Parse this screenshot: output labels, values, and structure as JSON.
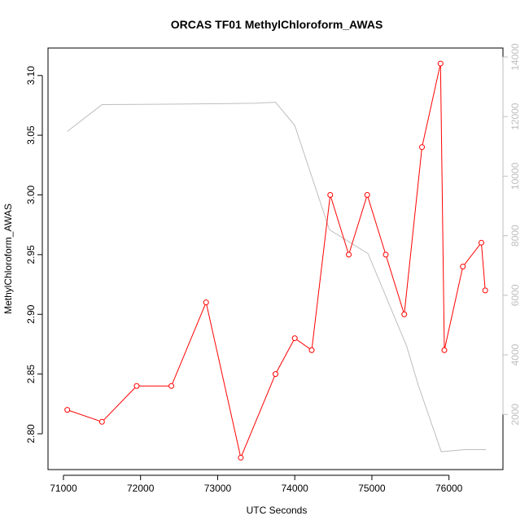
{
  "chart_data": {
    "type": "line",
    "title": "ORCAS TF01 MethylChloroform_AWAS",
    "xlabel": "UTC Seconds",
    "ylabel": "MethylChloroform_AWAS",
    "y2label": "",
    "xlim": [
      70800,
      76700
    ],
    "ylim": [
      2.77,
      3.123
    ],
    "y2lim": [
      150,
      14300
    ],
    "xticks": [
      71000,
      72000,
      73000,
      74000,
      75000,
      76000
    ],
    "yticks": [
      2.8,
      2.85,
      2.9,
      2.95,
      3.0,
      3.05,
      3.1
    ],
    "ytick_labels": [
      "2.80",
      "2.85",
      "2.90",
      "2.95",
      "3.00",
      "3.05",
      "3.10"
    ],
    "y2ticks": [
      2000,
      4000,
      6000,
      8000,
      10000,
      12000,
      14000
    ],
    "grid": false,
    "colors": {
      "primary": "#ff0000",
      "secondary": "#bebebe",
      "axis": "#000000"
    },
    "series": [
      {
        "axis": "left",
        "marker": "circle",
        "points": [
          [
            71050,
            2.82
          ],
          [
            71500,
            2.81
          ],
          [
            71950,
            2.84
          ],
          [
            72400,
            2.84
          ],
          [
            72850,
            2.91
          ],
          [
            73300,
            2.78
          ],
          [
            73750,
            2.85
          ],
          [
            74000,
            2.88
          ],
          [
            74220,
            2.87
          ],
          [
            74460,
            3.0
          ],
          [
            74700,
            2.95
          ],
          [
            74940,
            3.0
          ],
          [
            75180,
            2.95
          ],
          [
            75420,
            2.9
          ],
          [
            75650,
            3.04
          ],
          [
            75890,
            3.11
          ],
          [
            75940,
            2.87
          ],
          [
            76180,
            2.94
          ],
          [
            76420,
            2.96
          ],
          [
            76470,
            2.92
          ]
        ]
      },
      {
        "axis": "right",
        "marker": "none",
        "points": [
          [
            71050,
            11500
          ],
          [
            71500,
            12400
          ],
          [
            72000,
            12410
          ],
          [
            72500,
            12420
          ],
          [
            73000,
            12430
          ],
          [
            73500,
            12450
          ],
          [
            73750,
            12480
          ],
          [
            74000,
            11700
          ],
          [
            74450,
            8200
          ],
          [
            74950,
            7400
          ],
          [
            75450,
            4300
          ],
          [
            75600,
            3000
          ],
          [
            75900,
            750
          ],
          [
            76200,
            820
          ],
          [
            76480,
            820
          ]
        ]
      }
    ]
  }
}
